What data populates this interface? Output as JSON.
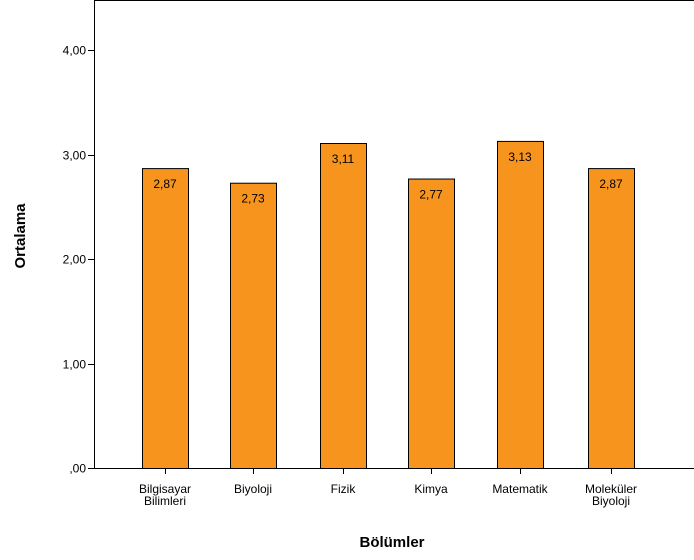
{
  "chart_data": {
    "type": "bar",
    "categories": [
      [
        "Bilgisayar",
        "Bilimleri"
      ],
      [
        "Biyoloji"
      ],
      [
        "Fizik"
      ],
      [
        "Kimya"
      ],
      [
        "Matematik"
      ],
      [
        "Moleküler",
        "Biyoloji"
      ]
    ],
    "values": [
      2.87,
      2.73,
      3.11,
      2.77,
      3.13,
      2.87
    ],
    "value_labels": [
      "2,87",
      "2,73",
      "3,11",
      "2,77",
      "3,13",
      "2,87"
    ],
    "title": "",
    "xlabel": "Bölümler",
    "ylabel": "Ortalama",
    "ylim": [
      0,
      4.4
    ],
    "yticks": [
      0,
      1,
      2,
      3,
      4
    ],
    "ytick_labels": [
      ",00",
      "1,00",
      "2,00",
      "3,00",
      "4,00"
    ],
    "grid": false,
    "legend": "none"
  },
  "colors": {
    "bar_fill": "#F7941D",
    "bar_stroke": "#000000",
    "axis": "#000000",
    "frame": "#000000",
    "background": "#ffffff"
  }
}
